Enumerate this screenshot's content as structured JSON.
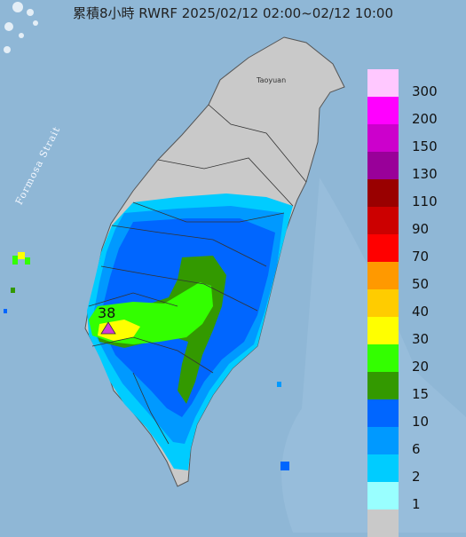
{
  "title": "累積8小時 RWRF 2025/02/12 02:00~02/12 10:00",
  "strait_label": "Formosa Strait",
  "city_label": "Taoyuan",
  "peak": {
    "value": "38",
    "marker": "triangle-marker",
    "color": "#d23ad6"
  },
  "colors": {
    "sea": "#8fb7d6",
    "land": "#c8cdd3",
    "no_rain": "#c9c9c9"
  },
  "legend": [
    {
      "label": "300",
      "color": "#ffc8ff"
    },
    {
      "label": "200",
      "color": "#ff00ff"
    },
    {
      "label": "150",
      "color": "#cc00cc"
    },
    {
      "label": "130",
      "color": "#990099"
    },
    {
      "label": "110",
      "color": "#990000"
    },
    {
      "label": "90",
      "color": "#cc0000"
    },
    {
      "label": "70",
      "color": "#ff0000"
    },
    {
      "label": "50",
      "color": "#ff9900"
    },
    {
      "label": "40",
      "color": "#ffcc00"
    },
    {
      "label": "30",
      "color": "#ffff00"
    },
    {
      "label": "20",
      "color": "#33ff00"
    },
    {
      "label": "15",
      "color": "#339900"
    },
    {
      "label": "10",
      "color": "#0066ff"
    },
    {
      "label": "6",
      "color": "#0099ff"
    },
    {
      "label": "2",
      "color": "#00ccff"
    },
    {
      "label": "1",
      "color": "#99ffff"
    },
    {
      "label": "",
      "color": "#c9c9c9"
    }
  ]
}
